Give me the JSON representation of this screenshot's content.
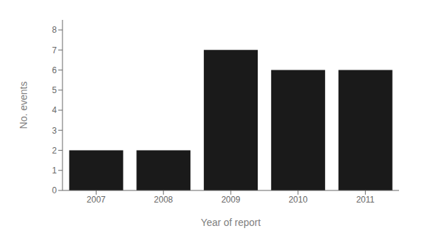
{
  "chart_data": {
    "type": "bar",
    "categories": [
      "2007",
      "2008",
      "2009",
      "2010",
      "2011"
    ],
    "values": [
      2,
      2,
      7,
      6,
      6
    ],
    "color": "#1a1a1a",
    "xlabel": "Year of report",
    "ylabel": "No. events",
    "ylim": [
      0,
      8.5
    ],
    "yticks": [
      0,
      1,
      2,
      3,
      4,
      5,
      6,
      7,
      8
    ],
    "grid": false
  }
}
